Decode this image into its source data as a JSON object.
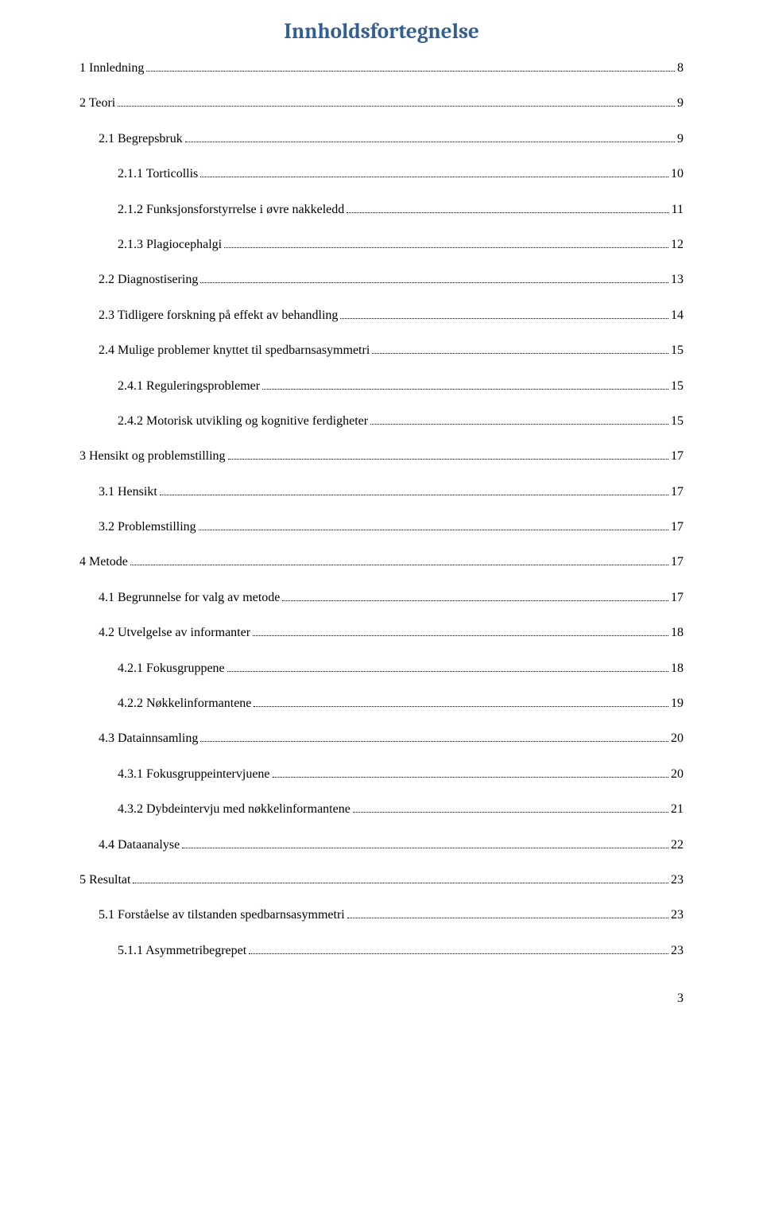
{
  "title": "Innholdsfortegnelse",
  "title_color": "#365f91",
  "title_fontsize": 27,
  "body_fontsize": 16,
  "text_color": "#000000",
  "background_color": "#ffffff",
  "leader_style": "dotted",
  "page_number": "3",
  "entries": [
    {
      "label": "1 Innledning",
      "page": "8",
      "level": 0
    },
    {
      "label": "2 Teori",
      "page": "9",
      "level": 0
    },
    {
      "label": "2.1 Begrepsbruk",
      "page": "9",
      "level": 1
    },
    {
      "label": "2.1.1 Torticollis",
      "page": "10",
      "level": 2
    },
    {
      "label": "2.1.2 Funksjonsforstyrrelse i øvre nakkeledd",
      "page": "11",
      "level": 2
    },
    {
      "label": "2.1.3 Plagiocephalgi",
      "page": "12",
      "level": 2
    },
    {
      "label": "2.2 Diagnostisering",
      "page": "13",
      "level": 1
    },
    {
      "label": "2.3 Tidligere forskning på effekt av behandling",
      "page": "14",
      "level": 1
    },
    {
      "label": "2.4 Mulige problemer knyttet til spedbarnsasymmetri",
      "page": "15",
      "level": 1
    },
    {
      "label": "2.4.1 Reguleringsproblemer",
      "page": "15",
      "level": 2
    },
    {
      "label": "2.4.2 Motorisk utvikling og kognitive ferdigheter",
      "page": "15",
      "level": 2
    },
    {
      "label": "3 Hensikt og problemstilling",
      "page": "17",
      "level": 0
    },
    {
      "label": "3.1 Hensikt",
      "page": "17",
      "level": 1
    },
    {
      "label": "3.2 Problemstilling",
      "page": "17",
      "level": 1
    },
    {
      "label": "4 Metode",
      "page": "17",
      "level": 0
    },
    {
      "label": "4.1 Begrunnelse for valg av metode",
      "page": "17",
      "level": 1
    },
    {
      "label": "4.2 Utvelgelse av informanter",
      "page": "18",
      "level": 1
    },
    {
      "label": "4.2.1 Fokusgruppene",
      "page": "18",
      "level": 2
    },
    {
      "label": "4.2.2 Nøkkelinformantene",
      "page": "19",
      "level": 2
    },
    {
      "label": "4.3 Datainnsamling",
      "page": "20",
      "level": 1
    },
    {
      "label": "4.3.1 Fokusgruppeintervjuene",
      "page": "20",
      "level": 2
    },
    {
      "label": "4.3.2 Dybdeintervju med nøkkelinformantene",
      "page": "21",
      "level": 2
    },
    {
      "label": "4.4 Dataanalyse",
      "page": "22",
      "level": 1
    },
    {
      "label": "5 Resultat",
      "page": "23",
      "level": 0
    },
    {
      "label": "5.1 Forståelse av tilstanden spedbarnsasymmetri",
      "page": "23",
      "level": 1
    },
    {
      "label": "5.1.1 Asymmetribegrepet",
      "page": "23",
      "level": 2
    }
  ]
}
